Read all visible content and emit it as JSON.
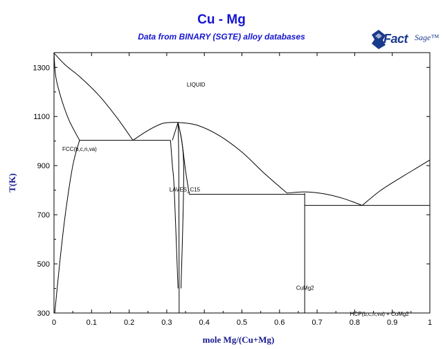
{
  "header": {
    "title": "Cu - Mg",
    "subtitle": "Data from BINARY (SGTE) alloy databases"
  },
  "logo": {
    "brand_main": "Fact",
    "brand_sub": "Sage™",
    "icon": "factsage-logo-icon"
  },
  "colors": {
    "title": "#1515d0",
    "axis_label": "#1a1a90",
    "line": "#000000",
    "logo": "#1a3a8c"
  },
  "chart_data": {
    "type": "phase-diagram",
    "xlabel": "mole Mg/(Cu+Mg)",
    "ylabel": "T(K)",
    "xlim": [
      0,
      1
    ],
    "ylim": [
      300,
      1360
    ],
    "xticks": [
      0,
      0.1,
      0.2,
      0.3,
      0.4,
      0.5,
      0.6,
      0.7,
      0.8,
      0.9,
      1
    ],
    "xtick_labels": [
      "0",
      "0.1",
      "0.2",
      "0.3",
      "0.4",
      "0.5",
      "0.6",
      "0.7",
      "0.8",
      "0.9",
      "1"
    ],
    "yticks": [
      300,
      500,
      700,
      900,
      1100,
      1300
    ],
    "ytick_labels": [
      "300",
      "500",
      "700",
      "900",
      "1100",
      "1300"
    ],
    "region_labels": [
      {
        "text": "LIQUID",
        "x": 0.378,
        "y": 1230
      },
      {
        "text": "FCC(b,c,n,va)",
        "x": 0.068,
        "y": 968
      },
      {
        "text": "LAVES_C15",
        "x": 0.348,
        "y": 803
      },
      {
        "text": "CuMg2",
        "x": 0.668,
        "y": 403
      },
      {
        "text": "HCP(b,c,n,va) + CuMg2",
        "x": 0.866,
        "y": 297
      }
    ],
    "lines": [
      {
        "name": "liquidus-cu-side",
        "points": [
          [
            0,
            1358
          ],
          [
            0.03,
            1310
          ],
          [
            0.07,
            1260
          ],
          [
            0.12,
            1185
          ],
          [
            0.17,
            1090
          ],
          [
            0.21,
            1003
          ]
        ]
      },
      {
        "name": "liquidus-laves-left",
        "points": [
          [
            0.21,
            1003
          ],
          [
            0.25,
            1043
          ],
          [
            0.29,
            1072
          ],
          [
            0.33,
            1076
          ]
        ]
      },
      {
        "name": "liquidus-laves-right",
        "points": [
          [
            0.33,
            1076
          ],
          [
            0.38,
            1065
          ],
          [
            0.44,
            1022
          ],
          [
            0.5,
            955
          ],
          [
            0.56,
            868
          ],
          [
            0.62,
            788
          ]
        ]
      },
      {
        "name": "liquidus-cumg2",
        "points": [
          [
            0.62,
            788
          ],
          [
            0.667,
            793
          ],
          [
            0.72,
            785
          ],
          [
            0.77,
            766
          ],
          [
            0.82,
            738
          ]
        ]
      },
      {
        "name": "liquidus-mg-side",
        "points": [
          [
            0.82,
            738
          ],
          [
            0.87,
            800
          ],
          [
            0.93,
            858
          ],
          [
            0.97,
            895
          ],
          [
            1,
            923
          ]
        ]
      },
      {
        "name": "solidus-fcc",
        "points": [
          [
            0,
            1358
          ],
          [
            0.005,
            1260
          ],
          [
            0.02,
            1170
          ],
          [
            0.04,
            1085
          ],
          [
            0.068,
            1003
          ]
        ]
      },
      {
        "name": "solvus-fcc",
        "points": [
          [
            0.068,
            1003
          ],
          [
            0.05,
            900
          ],
          [
            0.03,
            700
          ],
          [
            0.015,
            500
          ],
          [
            0.002,
            300
          ]
        ]
      },
      {
        "name": "eutectic-1",
        "points": [
          [
            0.068,
            1003
          ],
          [
            0.31,
            1003
          ]
        ]
      },
      {
        "name": "laves-left-outer",
        "points": [
          [
            0.31,
            1003
          ],
          [
            0.315,
            900
          ],
          [
            0.32,
            800
          ],
          [
            0.33,
            400
          ]
        ]
      },
      {
        "name": "laves-left-inner",
        "points": [
          [
            0.33,
            1076
          ],
          [
            0.315,
            1003
          ]
        ]
      },
      {
        "name": "laves-right-inner",
        "points": [
          [
            0.33,
            1076
          ],
          [
            0.345,
            900
          ],
          [
            0.338,
            400
          ]
        ]
      },
      {
        "name": "laves-right-outer",
        "points": [
          [
            0.33,
            1076
          ],
          [
            0.34,
            1000
          ],
          [
            0.35,
            880
          ],
          [
            0.36,
            783
          ]
        ]
      },
      {
        "name": "laves-center-upper",
        "points": [
          [
            0.33,
            1076
          ],
          [
            0.332,
            900
          ],
          [
            0.333,
            360
          ]
        ]
      },
      {
        "name": "laves-center",
        "points": [
          [
            0.333,
            300
          ],
          [
            0.333,
            360
          ]
        ]
      },
      {
        "name": "eutectic-2",
        "points": [
          [
            0.36,
            783
          ],
          [
            0.667,
            783
          ]
        ]
      },
      {
        "name": "cumg2-compound",
        "points": [
          [
            0.667,
            300
          ],
          [
            0.667,
            788
          ]
        ]
      },
      {
        "name": "eutectic-3",
        "points": [
          [
            0.667,
            738
          ],
          [
            1,
            738
          ]
        ]
      }
    ]
  }
}
